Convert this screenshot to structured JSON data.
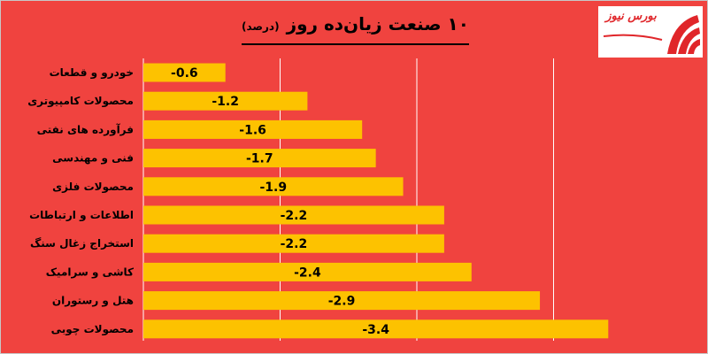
{
  "title": {
    "main": "۱۰ صنعت زیان‌ده روز",
    "unit": "(درصد)"
  },
  "logo": {
    "text": "بورس نیوز",
    "icon": "bourse-news-logo"
  },
  "colors": {
    "background": "#f0433f",
    "bar": "#fdc200",
    "gridline": "#ffffff"
  },
  "chart_data": {
    "type": "bar",
    "orientation": "horizontal",
    "title": "۱۰ صنعت زیان‌ده روز",
    "unit": "(درصد)",
    "categories": [
      "خودرو و قطعات",
      "محصولات کامپیوتری",
      "فرآورده های نفتی",
      "فنی و مهندسی",
      "محصولات فلزی",
      "اطلاعات و ارتباطات",
      "استخراج زغال سنگ",
      "کاشی و سرامیک",
      "هتل و رستوران",
      "محصولات چوبی"
    ],
    "values": [
      -0.6,
      -1.2,
      -1.6,
      -1.7,
      -1.9,
      -2.2,
      -2.2,
      -2.4,
      -2.9,
      -3.4
    ],
    "value_labels": [
      "-0.6",
      "-1.2",
      "-1.6",
      "-1.7",
      "-1.9",
      "-2.2",
      "-2.2",
      "-2.4",
      "-2.9",
      "-3.4"
    ],
    "xlim": [
      0,
      -3.5
    ],
    "grid": true,
    "legend": "none"
  }
}
